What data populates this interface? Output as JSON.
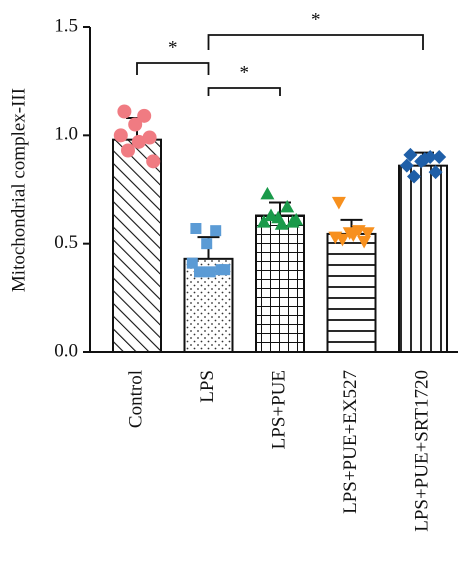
{
  "chart_data": {
    "type": "bar",
    "ylabel": "Mitochondrial complex-III",
    "categories": [
      "Control",
      "LPS",
      "LPS+PUE",
      "LPS+PUE+EX527",
      "LPS+PUE+SRT1720"
    ],
    "values": [
      0.98,
      0.43,
      0.63,
      0.545,
      0.86
    ],
    "errors": [
      0.1,
      0.1,
      0.06,
      0.065,
      0.06
    ],
    "points": [
      [
        1.11,
        1.09,
        1.05,
        1.0,
        0.99,
        0.93,
        0.88,
        0.97
      ],
      [
        0.57,
        0.56,
        0.5,
        0.41,
        0.38,
        0.37,
        0.38,
        0.37
      ],
      [
        0.73,
        0.67,
        0.62,
        0.6,
        0.6,
        0.63,
        0.61,
        0.59
      ],
      [
        0.69,
        0.56,
        0.55,
        0.53,
        0.51,
        0.52,
        0.55,
        0.54
      ],
      [
        0.91,
        0.9,
        0.88,
        0.86,
        0.83,
        0.81,
        0.9,
        0.89
      ]
    ],
    "colors": [
      "#f07b82",
      "#5b9bd5",
      "#1a9a4a",
      "#f7901e",
      "#1f5fa8"
    ],
    "markers": [
      "circle",
      "square",
      "triangle-up",
      "triangle-down",
      "diamond"
    ],
    "patterns": [
      "diagonal",
      "dots",
      "grid",
      "horizontal",
      "vertical"
    ],
    "annotations": [
      "*",
      "*",
      "*"
    ],
    "ylim": [
      0,
      1.5
    ],
    "yticks": [
      {
        "value": 0,
        "label": "0.0"
      },
      {
        "value": 0.5,
        "label": "0.5"
      },
      {
        "value": 1.0,
        "label": "1.0"
      },
      {
        "value": 1.5,
        "label": "1.5"
      }
    ]
  }
}
